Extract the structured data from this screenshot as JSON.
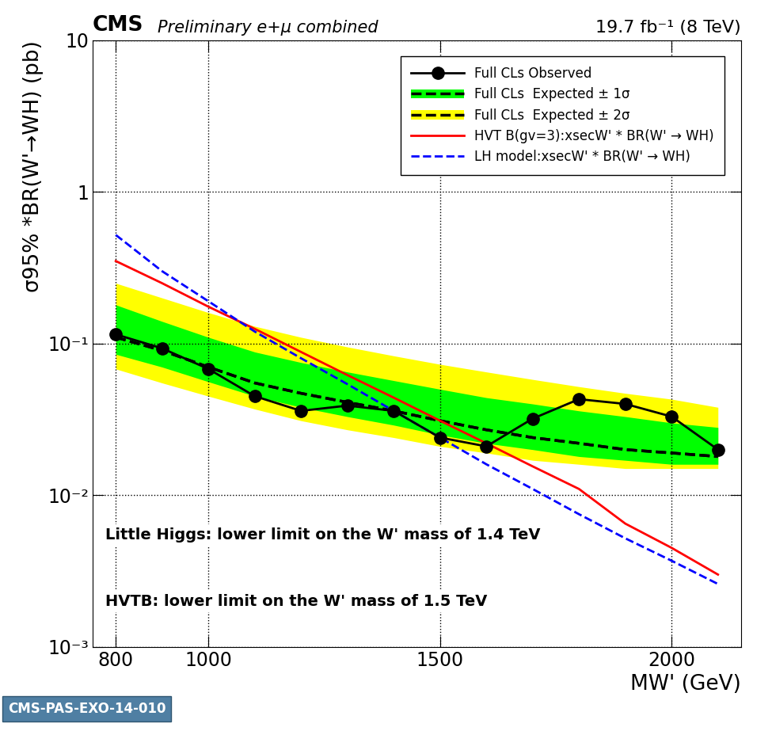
{
  "chart_data": {
    "type": "line",
    "header": {
      "experiment": "CMS",
      "status": "Preliminary e+μ combined",
      "luminosity": "19.7 fb⁻¹ (8 TeV)"
    },
    "x_label": "MW' (GeV)",
    "y_label": "σ95% *BR(W'→WH) (pb)",
    "x": [
      800,
      900,
      1000,
      1100,
      1200,
      1300,
      1400,
      1500,
      1600,
      1700,
      1800,
      1900,
      2000,
      2100
    ],
    "xlim": [
      750,
      2150
    ],
    "xticks": [
      800,
      1000,
      1500,
      2000
    ],
    "ylim": [
      0.001,
      10
    ],
    "yticks": [
      {
        "value": 0.001,
        "label": "10⁻³"
      },
      {
        "value": 0.01,
        "label": "10⁻²"
      },
      {
        "value": 0.1,
        "label": "10⁻¹"
      },
      1,
      10
    ],
    "log": "y",
    "grid": true,
    "legend": "upper right",
    "series": [
      {
        "name": "Full CLs  Expected ± 2σ",
        "type": "band",
        "color": "#ffff00",
        "line_style": "dashed",
        "values": [
          0.11,
          0.09,
          0.07,
          0.055,
          0.047,
          0.041,
          0.036,
          0.031,
          0.027,
          0.024,
          0.022,
          0.02,
          0.019,
          0.018
        ],
        "low": [
          0.068,
          0.055,
          0.045,
          0.037,
          0.031,
          0.027,
          0.024,
          0.021,
          0.019,
          0.017,
          0.016,
          0.015,
          0.015,
          0.015
        ],
        "high": [
          0.25,
          0.2,
          0.16,
          0.13,
          0.11,
          0.095,
          0.083,
          0.073,
          0.065,
          0.058,
          0.052,
          0.047,
          0.043,
          0.038
        ]
      },
      {
        "name": "Full CLs  Expected ± 1σ",
        "type": "band",
        "color": "#00ff00",
        "line_style": "dashed",
        "values": [
          0.11,
          0.09,
          0.07,
          0.055,
          0.047,
          0.041,
          0.036,
          0.031,
          0.027,
          0.024,
          0.022,
          0.02,
          0.019,
          0.018
        ],
        "low": [
          0.085,
          0.07,
          0.056,
          0.045,
          0.038,
          0.033,
          0.029,
          0.025,
          0.022,
          0.02,
          0.018,
          0.017,
          0.016,
          0.016
        ],
        "high": [
          0.18,
          0.14,
          0.11,
          0.088,
          0.075,
          0.065,
          0.057,
          0.05,
          0.044,
          0.04,
          0.036,
          0.033,
          0.03,
          0.028
        ]
      },
      {
        "name": "HVT B(gv=3):xsecW' * BR(W' → WH)",
        "type": "line",
        "color": "#ff0000",
        "line_style": "solid",
        "values": [
          0.35,
          0.25,
          0.175,
          0.125,
          0.088,
          0.062,
          0.044,
          0.031,
          0.022,
          0.0155,
          0.011,
          0.0065,
          0.0045,
          0.003
        ]
      },
      {
        "name": "LH model:xsecW' * BR(W' → WH)",
        "type": "line",
        "color": "#0000ff",
        "line_style": "dashed",
        "values": [
          0.52,
          0.3,
          0.19,
          0.12,
          0.08,
          0.054,
          0.036,
          0.024,
          0.016,
          0.011,
          0.0075,
          0.0052,
          0.0037,
          0.0026
        ]
      },
      {
        "name": "Full CLs Observed",
        "type": "line",
        "color": "#000000",
        "line_style": "solid",
        "marker": "o",
        "values": [
          0.115,
          0.093,
          0.068,
          0.045,
          0.036,
          0.039,
          0.036,
          0.024,
          0.021,
          0.032,
          0.043,
          0.04,
          0.033,
          0.02
        ]
      }
    ],
    "annotations": [
      "Little Higgs: lower limit on the W' mass of 1.4 TeV",
      "HVTB: lower limit on the W' mass of 1.5 TeV",
      "CMS-PAS-EXO-14-010"
    ]
  }
}
